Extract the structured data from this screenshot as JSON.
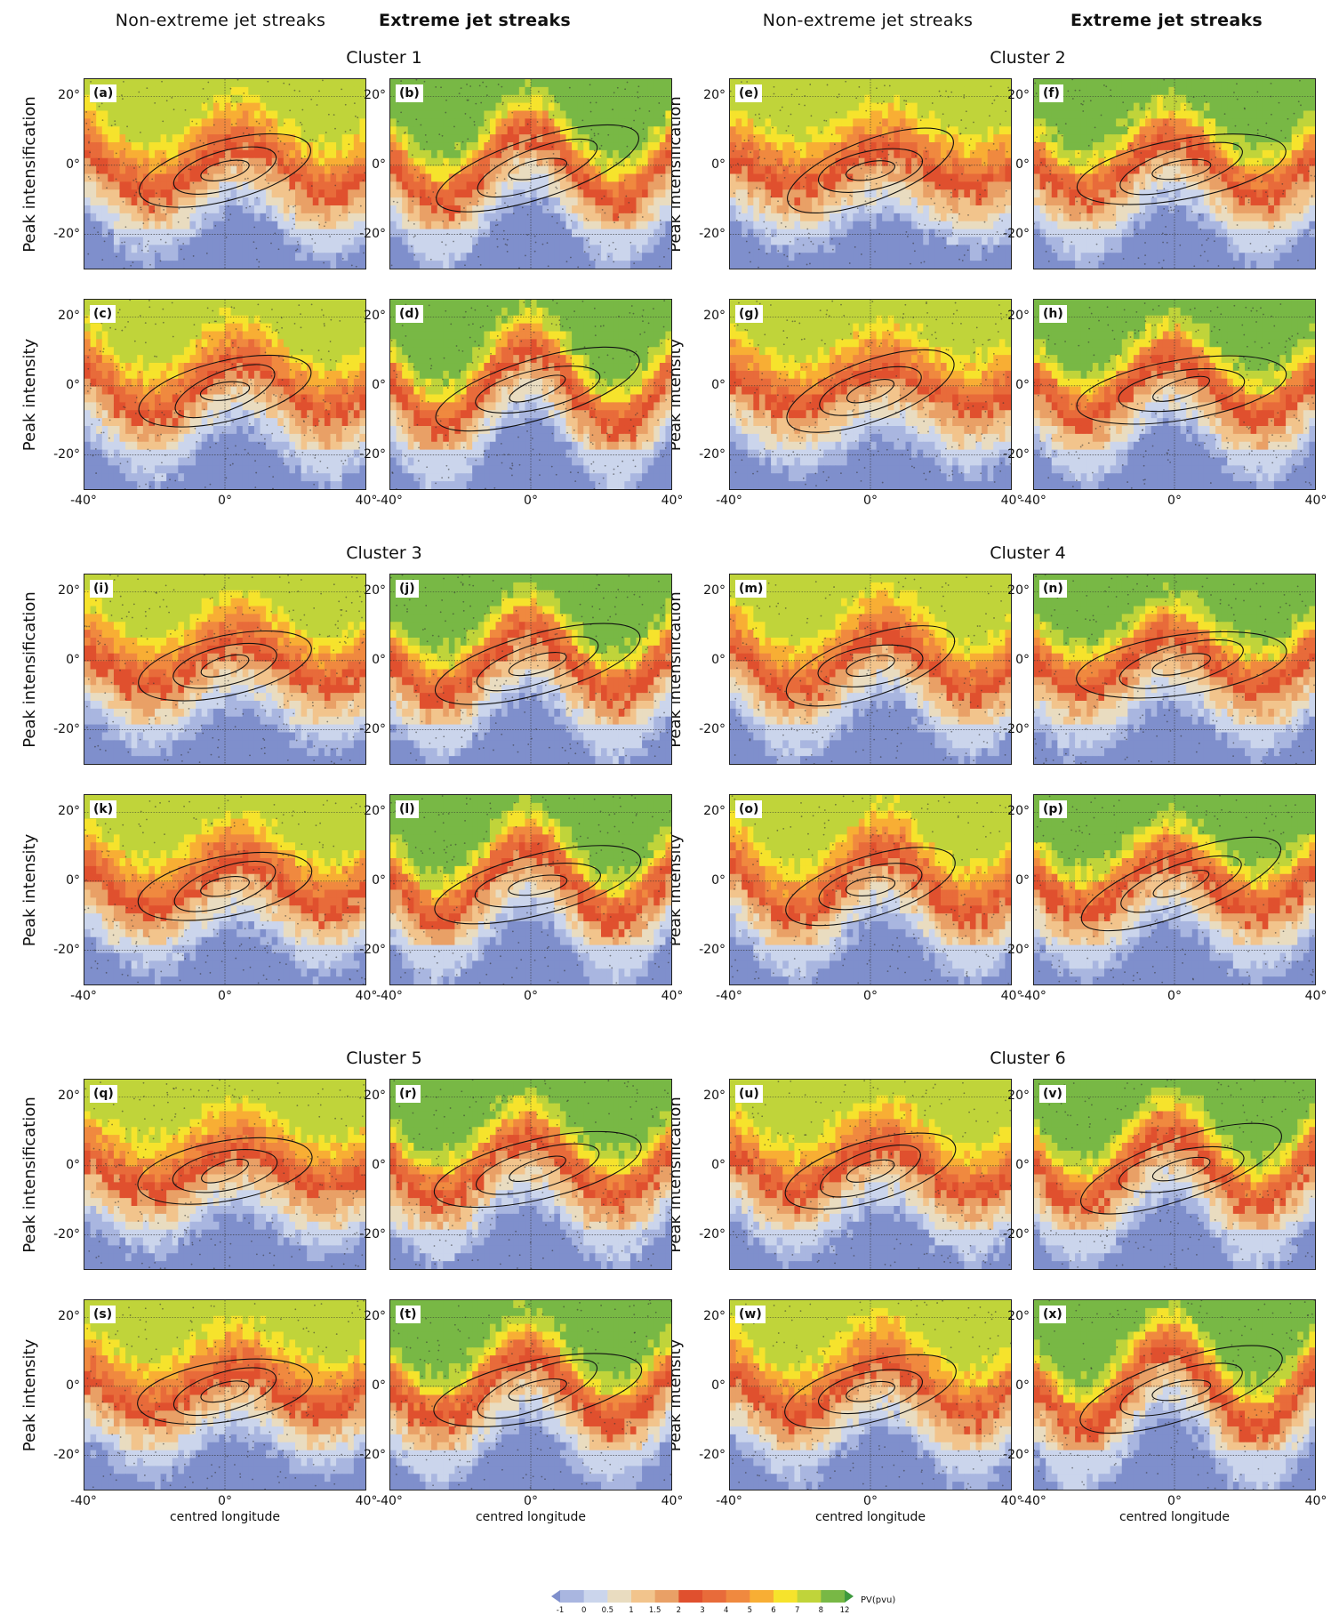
{
  "column_headers": [
    "Non-extreme jet streaks",
    "Extreme jet streaks",
    "Non-extreme jet streaks",
    "Extreme jet streaks"
  ],
  "cluster_titles": [
    "Cluster 1",
    "Cluster 2",
    "Cluster 3",
    "Cluster 4",
    "Cluster 5",
    "Cluster 6"
  ],
  "row_labels": [
    "Peak intensification",
    "Peak intensity"
  ],
  "panel_labels": [
    "(a)",
    "(b)",
    "(e)",
    "(f)",
    "(c)",
    "(d)",
    "(g)",
    "(h)",
    "(i)",
    "(j)",
    "(m)",
    "(n)",
    "(k)",
    "(l)",
    "(o)",
    "(p)",
    "(q)",
    "(r)",
    "(u)",
    "(v)",
    "(s)",
    "(t)",
    "(w)",
    "(x)"
  ],
  "y_ticks": [
    "20°",
    "0°",
    "-20°"
  ],
  "x_ticks": [
    "-40°",
    "0°",
    "40°"
  ],
  "x_axis_label": "centred longitude",
  "colorbar": {
    "label": "PV(pvu)",
    "ticks": [
      "-1",
      "0",
      "0.5",
      "1",
      "1.5",
      "2",
      "3",
      "4",
      "5",
      "6",
      "7",
      "8",
      "12"
    ],
    "colors": [
      "#7f8fcc",
      "#a9b6e0",
      "#cbd5ec",
      "#e9dcc0",
      "#f2c48c",
      "#e9a066",
      "#e0502e",
      "#e86b3a",
      "#f0893f",
      "#f8ae34",
      "#f6e32c",
      "#c0d43a",
      "#78b845",
      "#3e9a3e"
    ]
  },
  "chart_data": {
    "type": "heatmap",
    "title": "",
    "xlabel": "centred longitude",
    "ylabel": "",
    "xlim": [
      -40,
      40
    ],
    "ylim": [
      -30,
      25
    ],
    "x_ticks": [
      -40,
      0,
      40
    ],
    "y_ticks": [
      -20,
      0,
      20
    ],
    "colorbar_levels": [
      -1,
      0,
      0.5,
      1,
      1.5,
      2,
      3,
      4,
      5,
      6,
      7,
      8,
      12
    ],
    "panels": [
      {
        "label": "(a)",
        "cluster": 1,
        "type": "Non-extreme jet streaks",
        "stage": "Peak intensification"
      },
      {
        "label": "(b)",
        "cluster": 1,
        "type": "Extreme jet streaks",
        "stage": "Peak intensification"
      },
      {
        "label": "(c)",
        "cluster": 1,
        "type": "Non-extreme jet streaks",
        "stage": "Peak intensity"
      },
      {
        "label": "(d)",
        "cluster": 1,
        "type": "Extreme jet streaks",
        "stage": "Peak intensity"
      },
      {
        "label": "(e)",
        "cluster": 2,
        "type": "Non-extreme jet streaks",
        "stage": "Peak intensification"
      },
      {
        "label": "(f)",
        "cluster": 2,
        "type": "Extreme jet streaks",
        "stage": "Peak intensification"
      },
      {
        "label": "(g)",
        "cluster": 2,
        "type": "Non-extreme jet streaks",
        "stage": "Peak intensity"
      },
      {
        "label": "(h)",
        "cluster": 2,
        "type": "Extreme jet streaks",
        "stage": "Peak intensity"
      },
      {
        "label": "(i)",
        "cluster": 3,
        "type": "Non-extreme jet streaks",
        "stage": "Peak intensification"
      },
      {
        "label": "(j)",
        "cluster": 3,
        "type": "Extreme jet streaks",
        "stage": "Peak intensification"
      },
      {
        "label": "(k)",
        "cluster": 3,
        "type": "Non-extreme jet streaks",
        "stage": "Peak intensity"
      },
      {
        "label": "(l)",
        "cluster": 3,
        "type": "Extreme jet streaks",
        "stage": "Peak intensity"
      },
      {
        "label": "(m)",
        "cluster": 4,
        "type": "Non-extreme jet streaks",
        "stage": "Peak intensification"
      },
      {
        "label": "(n)",
        "cluster": 4,
        "type": "Extreme jet streaks",
        "stage": "Peak intensification"
      },
      {
        "label": "(o)",
        "cluster": 4,
        "type": "Non-extreme jet streaks",
        "stage": "Peak intensity"
      },
      {
        "label": "(p)",
        "cluster": 4,
        "type": "Extreme jet streaks",
        "stage": "Peak intensity"
      },
      {
        "label": "(q)",
        "cluster": 5,
        "type": "Non-extreme jet streaks",
        "stage": "Peak intensification"
      },
      {
        "label": "(r)",
        "cluster": 5,
        "type": "Extreme jet streaks",
        "stage": "Peak intensification"
      },
      {
        "label": "(s)",
        "cluster": 5,
        "type": "Non-extreme jet streaks",
        "stage": "Peak intensity"
      },
      {
        "label": "(t)",
        "cluster": 5,
        "type": "Extreme jet streaks",
        "stage": "Peak intensity"
      },
      {
        "label": "(u)",
        "cluster": 6,
        "type": "Non-extreme jet streaks",
        "stage": "Peak intensification"
      },
      {
        "label": "(v)",
        "cluster": 6,
        "type": "Extreme jet streaks",
        "stage": "Peak intensification"
      },
      {
        "label": "(w)",
        "cluster": 6,
        "type": "Non-extreme jet streaks",
        "stage": "Peak intensity"
      },
      {
        "label": "(x)",
        "cluster": 6,
        "type": "Extreme jet streaks",
        "stage": "Peak intensity"
      }
    ]
  }
}
